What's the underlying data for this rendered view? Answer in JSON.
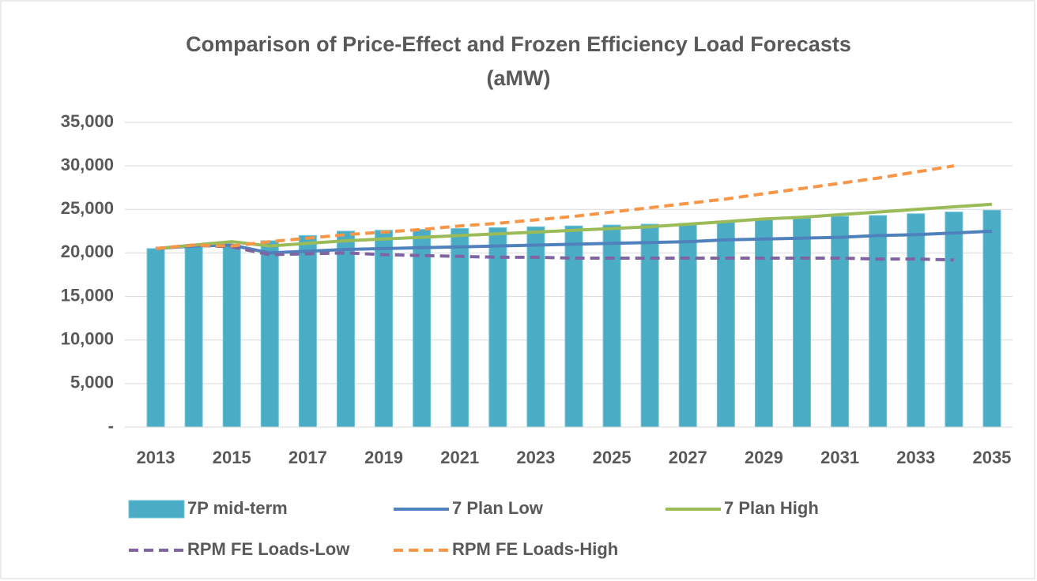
{
  "chart_data": {
    "type": "combo",
    "title": [
      "Comparison of Price-Effect and Frozen Efficiency Load Forecasts",
      "(aMW)"
    ],
    "categories": [
      "2013",
      null,
      "2015",
      null,
      "2017",
      null,
      "2019",
      null,
      "2021",
      null,
      "2023",
      null,
      "2025",
      null,
      "2027",
      null,
      "2029",
      null,
      "2031",
      null,
      "2033",
      null,
      "2035"
    ],
    "ylim": [
      0,
      35000
    ],
    "yticks": [
      {
        "value": 0,
        "label": "-"
      },
      {
        "value": 5000,
        "label": "5,000"
      },
      {
        "value": 10000,
        "label": "10,000"
      },
      {
        "value": 15000,
        "label": "15,000"
      },
      {
        "value": 20000,
        "label": "20,000"
      },
      {
        "value": 25000,
        "label": "25,000"
      },
      {
        "value": 30000,
        "label": "30,000"
      },
      {
        "value": 35000,
        "label": "35,000"
      }
    ],
    "grid": true,
    "series": [
      {
        "name": "7P mid-term",
        "type": "bar",
        "color": "#4bacc6",
        "values": [
          20500,
          20700,
          20900,
          21400,
          22000,
          22500,
          22600,
          22700,
          22800,
          22900,
          23000,
          23100,
          23200,
          23300,
          23400,
          23600,
          23800,
          24000,
          24200,
          24300,
          24500,
          24700,
          24900
        ]
      },
      {
        "name": "7 Plan Low",
        "type": "line",
        "color": "#4f81bd",
        "dashed": false,
        "values": [
          20500,
          20800,
          20900,
          20000,
          20200,
          20400,
          20500,
          20600,
          20700,
          20800,
          20900,
          21000,
          21100,
          21200,
          21300,
          21500,
          21600,
          21700,
          21800,
          22000,
          22100,
          22300,
          22500
        ]
      },
      {
        "name": "7 Plan High",
        "type": "line",
        "color": "#9bbb59",
        "dashed": false,
        "values": [
          20500,
          20900,
          21300,
          20800,
          21100,
          21400,
          21600,
          21800,
          22000,
          22200,
          22400,
          22600,
          22800,
          23000,
          23300,
          23600,
          23900,
          24100,
          24400,
          24700,
          25000,
          25300,
          25600
        ]
      },
      {
        "name": "RPM FE Loads-Low",
        "type": "line",
        "color": "#8064a2",
        "dashed": true,
        "values": [
          20500,
          20900,
          20700,
          19800,
          19900,
          20000,
          19800,
          19700,
          19600,
          19500,
          19500,
          19400,
          19400,
          19400,
          19400,
          19400,
          19400,
          19400,
          19400,
          19300,
          19300,
          19200,
          null
        ]
      },
      {
        "name": "RPM FE Loads-High",
        "type": "line",
        "color": "#f79646",
        "dashed": true,
        "values": [
          20500,
          20900,
          20800,
          21300,
          21700,
          22100,
          22400,
          22700,
          23100,
          23400,
          23800,
          24200,
          24700,
          25200,
          25700,
          26200,
          26800,
          27400,
          28000,
          28600,
          29300,
          30000,
          null
        ]
      }
    ]
  }
}
